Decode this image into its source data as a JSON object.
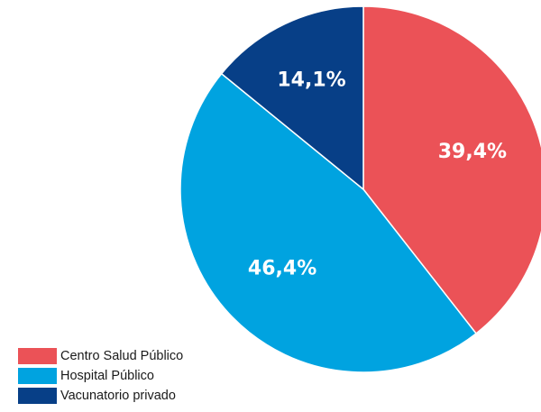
{
  "chart_data": {
    "type": "pie",
    "title": "",
    "categories": [
      "Centro Salud Público",
      "Hospital Público",
      "Vacunatorio privado"
    ],
    "values": [
      39.4,
      46.4,
      14.1
    ],
    "value_labels": [
      "39,4%",
      "46,4%",
      "14,1%"
    ],
    "colors": [
      "#EB5257",
      "#00A3E0",
      "#073F87"
    ],
    "legend_position": "bottom-left",
    "start_angle": "top (12 o'clock)",
    "direction": "clockwise"
  }
}
